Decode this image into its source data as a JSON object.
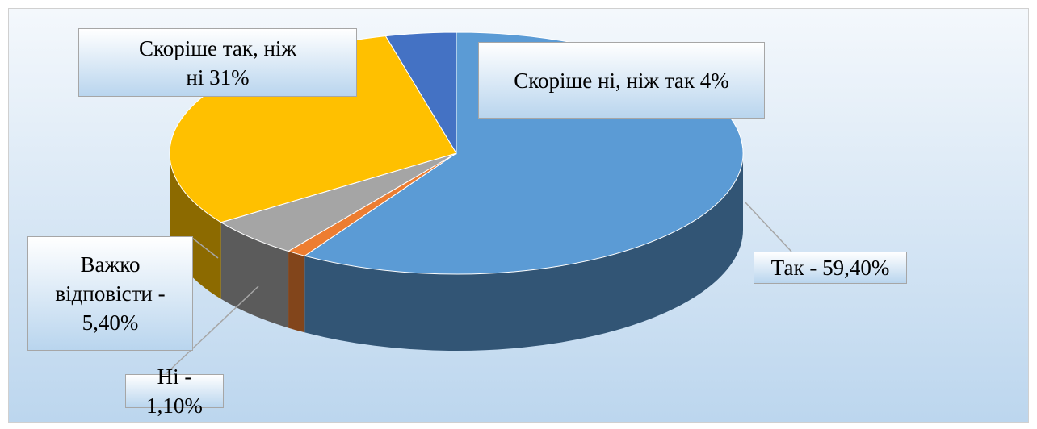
{
  "chart_data": {
    "type": "pie3d",
    "values": [
      59.4,
      1.1,
      5.4,
      31,
      4
    ],
    "value_labels": [
      "Так - 59,40%",
      "Ні - 1,10%",
      "Важко відповісти - 5,40%",
      "Скоріше так, ніж ні 31%",
      "Скоріше ні, ніж так 4%"
    ],
    "colors": [
      "#5b9bd5",
      "#ed7d31",
      "#a5a5a5",
      "#ffc000",
      "#4472c4"
    ]
  }
}
